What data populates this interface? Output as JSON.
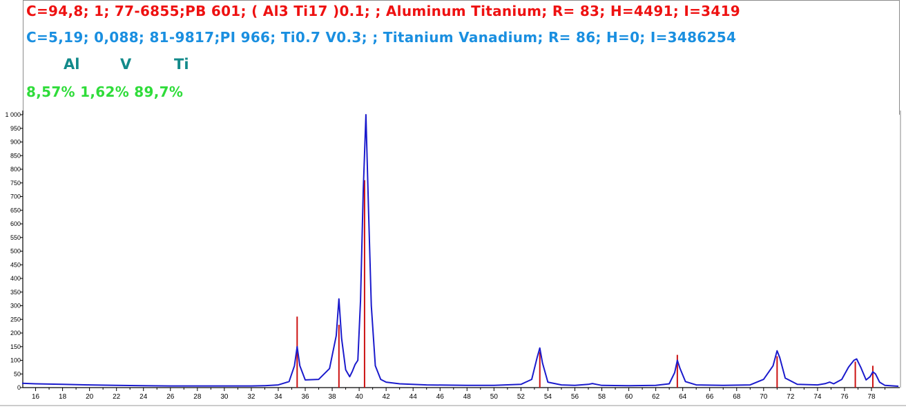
{
  "colors": {
    "phase1": "#ee1111",
    "phase2": "#1a8fe0",
    "elements": "#128a8a",
    "percents": "#2fdc3a",
    "pattern": "#1a1acc",
    "sticks": "#cc1111"
  },
  "header": {
    "phase1": "C=94,8; 1;  77-6855;PB 601; ( Al3 Ti17 )0.1; ; Aluminum Titanium; R= 83; H=4491; I=3419",
    "phase2": "C=5,19; 0,088;  81-9817;PI 966; Ti0.7 V0.3; ; Titanium Vanadium; R= 86; H=0; I=3486254",
    "elements": [
      "Al",
      "V",
      "Ti"
    ],
    "percents": "8,57% 1,62% 89,7%"
  },
  "chart_data": {
    "type": "line",
    "title": "",
    "xlabel": "",
    "ylabel": "",
    "xlim": [
      15,
      80
    ],
    "ylim": [
      0,
      1000
    ],
    "x_ticks": [
      16,
      18,
      20,
      22,
      24,
      26,
      28,
      30,
      32,
      34,
      36,
      38,
      40,
      42,
      44,
      46,
      48,
      50,
      52,
      54,
      56,
      58,
      60,
      62,
      64,
      66,
      68,
      70,
      72,
      74,
      76,
      78
    ],
    "y_ticks": [
      0,
      50,
      100,
      150,
      200,
      250,
      300,
      350,
      400,
      450,
      500,
      550,
      600,
      650,
      700,
      750,
      800,
      850,
      900,
      950,
      1000
    ],
    "y_tick_labels": [
      "0",
      "50",
      "100",
      "150",
      "200",
      "250",
      "300",
      "350",
      "400",
      "450",
      "500",
      "550",
      "600",
      "650",
      "700",
      "750",
      "800",
      "850",
      "900",
      "950",
      "1 000"
    ],
    "series": [
      {
        "x": [
          15,
          16,
          18,
          20,
          22,
          24,
          26,
          28,
          30,
          32,
          33,
          34,
          34.8,
          35.2,
          35.4,
          35.6,
          36,
          37,
          37.8,
          38.3,
          38.5,
          38.7,
          39,
          39.3,
          39.5,
          39.7,
          39.9,
          40.1,
          40.3,
          40.5,
          40.7,
          40.9,
          41.2,
          41.6,
          42,
          43,
          45,
          48,
          50,
          52,
          52.8,
          53.2,
          53.4,
          53.6,
          54,
          55,
          56,
          57,
          57.3,
          57.6,
          58,
          60,
          62,
          63,
          63.4,
          63.6,
          63.8,
          64.2,
          65,
          67,
          69,
          70,
          70.7,
          71,
          71.2,
          71.6,
          72.5,
          74,
          74.6,
          74.9,
          75.2,
          75.8,
          76.3,
          76.7,
          76.9,
          77.2,
          77.6,
          77.9,
          78.1,
          78.3,
          78.6,
          79,
          80
        ],
        "y": [
          16,
          14,
          12,
          10,
          8,
          7,
          6,
          6,
          6,
          6,
          7,
          10,
          22,
          80,
          150,
          80,
          28,
          30,
          70,
          190,
          325,
          180,
          65,
          40,
          60,
          85,
          100,
          320,
          720,
          1000,
          640,
          300,
          80,
          30,
          20,
          14,
          10,
          8,
          8,
          12,
          30,
          110,
          145,
          90,
          20,
          10,
          8,
          12,
          15,
          12,
          8,
          7,
          8,
          14,
          55,
          100,
          70,
          22,
          10,
          8,
          10,
          30,
          80,
          135,
          110,
          35,
          12,
          10,
          15,
          20,
          14,
          30,
          75,
          100,
          105,
          75,
          28,
          40,
          58,
          50,
          20,
          8,
          5
        ]
      }
    ],
    "reference_lines": [
      {
        "x": 35.4,
        "y": 260
      },
      {
        "x": 38.5,
        "y": 230
      },
      {
        "x": 40.4,
        "y": 760
      },
      {
        "x": 53.4,
        "y": 130
      },
      {
        "x": 63.6,
        "y": 120
      },
      {
        "x": 71.0,
        "y": 115
      },
      {
        "x": 76.8,
        "y": 95
      },
      {
        "x": 78.1,
        "y": 80
      }
    ]
  }
}
